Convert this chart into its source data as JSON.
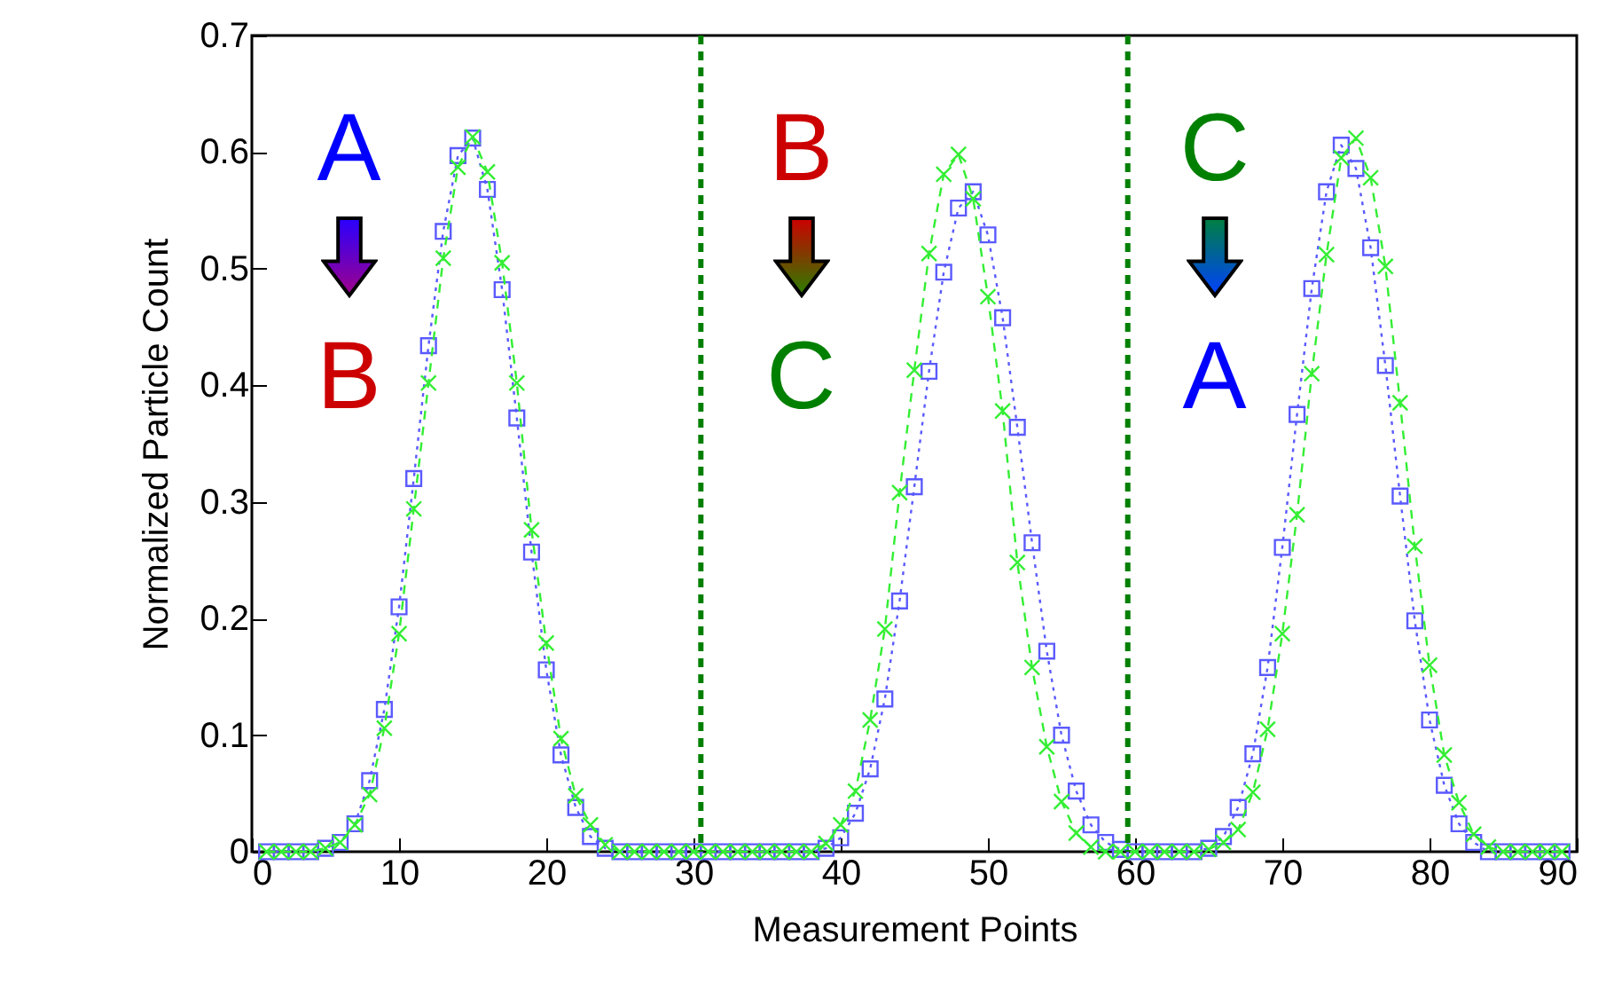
{
  "chart_data": {
    "type": "line",
    "xlabel": "Measurement Points",
    "ylabel": "Normalized Particle Count",
    "x": [
      1,
      2,
      3,
      4,
      5,
      6,
      7,
      8,
      9,
      10,
      11,
      12,
      13,
      14,
      15,
      16,
      17,
      18,
      19,
      20,
      21,
      22,
      23,
      24,
      25,
      26,
      27,
      28,
      29,
      30,
      31,
      32,
      33,
      34,
      35,
      36,
      37,
      38,
      39,
      40,
      41,
      42,
      43,
      44,
      45,
      46,
      47,
      48,
      49,
      50,
      51,
      52,
      53,
      54,
      55,
      56,
      57,
      58,
      59,
      60,
      61,
      62,
      63,
      64,
      65,
      66,
      67,
      68,
      69,
      70,
      71,
      72,
      73,
      74,
      75,
      76,
      77,
      78,
      79,
      80,
      81,
      82,
      83,
      84,
      85,
      86,
      87,
      88,
      89
    ],
    "series": [
      {
        "color": "#5a5aff",
        "marker": "square",
        "line_style": "dotted",
        "values": [
          0,
          0,
          0,
          0,
          0.003,
          0.008,
          0.024,
          0.061,
          0.122,
          0.21,
          0.32,
          0.434,
          0.532,
          0.597,
          0.612,
          0.568,
          0.482,
          0.372,
          0.257,
          0.156,
          0.083,
          0.038,
          0.013,
          0.003,
          0,
          0,
          0,
          0,
          0,
          0,
          0,
          0,
          0,
          0,
          0,
          0,
          0,
          0,
          0.003,
          0.012,
          0.033,
          0.071,
          0.131,
          0.215,
          0.313,
          0.412,
          0.497,
          0.552,
          0.566,
          0.529,
          0.458,
          0.364,
          0.265,
          0.172,
          0.1,
          0.052,
          0.023,
          0.008,
          0.002,
          0,
          0,
          0,
          0,
          0,
          0.003,
          0.013,
          0.038,
          0.084,
          0.158,
          0.261,
          0.375,
          0.483,
          0.566,
          0.606,
          0.586,
          0.518,
          0.417,
          0.305,
          0.198,
          0.113,
          0.057,
          0.024,
          0.008,
          0,
          0,
          0,
          0,
          0,
          0
        ]
      },
      {
        "color": "#33ee33",
        "marker": "cross",
        "line_style": "dashed",
        "values": [
          0,
          0,
          0,
          0,
          0.003,
          0.008,
          0.023,
          0.049,
          0.106,
          0.187,
          0.294,
          0.402,
          0.509,
          0.587,
          0.613,
          0.583,
          0.505,
          0.402,
          0.276,
          0.179,
          0.097,
          0.048,
          0.023,
          0.006,
          0,
          0,
          0,
          0,
          0,
          0,
          0,
          0,
          0,
          0,
          0,
          0,
          0,
          0,
          0.007,
          0.023,
          0.052,
          0.113,
          0.191,
          0.308,
          0.413,
          0.513,
          0.581,
          0.598,
          0.56,
          0.476,
          0.378,
          0.248,
          0.158,
          0.09,
          0.043,
          0.016,
          0.004,
          0,
          0,
          0,
          0,
          0,
          0,
          0,
          0.002,
          0.008,
          0.019,
          0.051,
          0.105,
          0.187,
          0.289,
          0.41,
          0.512,
          0.595,
          0.612,
          0.578,
          0.502,
          0.385,
          0.262,
          0.16,
          0.083,
          0.042,
          0.015,
          0.004,
          0,
          0,
          0,
          0,
          0
        ]
      }
    ],
    "xlim": [
      0,
      90
    ],
    "xticks": [
      0,
      10,
      20,
      30,
      40,
      50,
      60,
      70,
      80,
      90
    ],
    "ylim": [
      0,
      0.7
    ],
    "yticks": [
      0,
      0.1,
      0.2,
      0.3,
      0.4,
      0.5,
      0.6,
      0.7
    ],
    "grid": false,
    "ref_lines": [
      {
        "axis": "x",
        "value": 30.5,
        "color": "#008000",
        "line_style": "dashed"
      },
      {
        "axis": "x",
        "value": 59.5,
        "color": "#008000",
        "line_style": "dashed"
      }
    ],
    "annotations": [
      "A",
      "B",
      "B",
      "C",
      "C",
      "A"
    ]
  }
}
